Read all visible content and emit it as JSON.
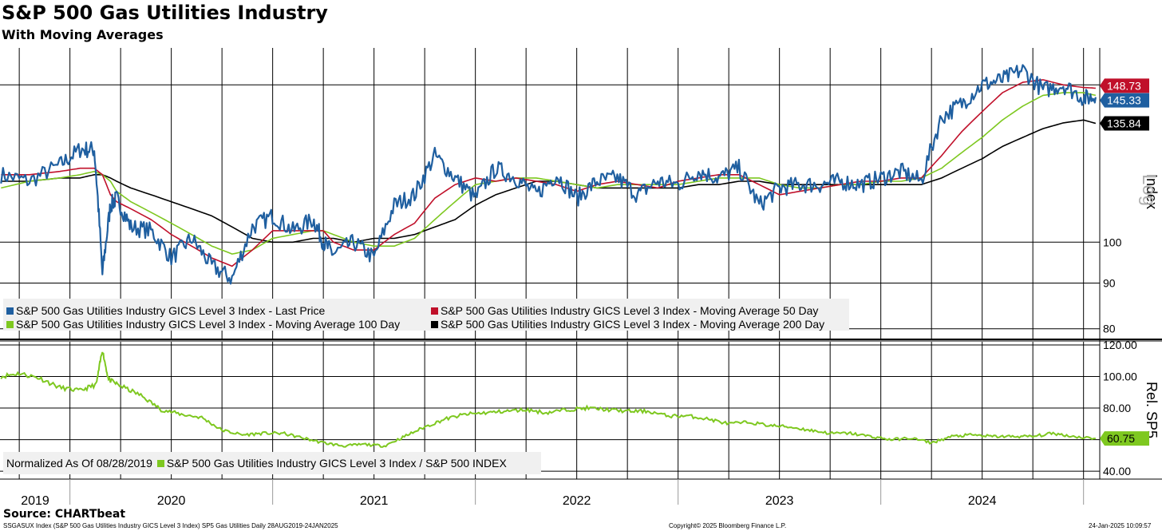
{
  "header": {
    "title": "S&P 500 Gas Utilities Industry",
    "subtitle": "With Moving Averages"
  },
  "footer": {
    "source": "Source: CHARTbeat",
    "ticker_info": "SSGASUX Index (S&P 500 Gas Utilities Industry GICS Level 3 Index) SP5 Gas Utilities  Daily 28AUG2019-24JAN2025",
    "copyright": "Copyright© 2025 Bloomberg Finance L.P.",
    "timestamp": "24-Jan-2025 10:09:57"
  },
  "colors": {
    "last_price": "#1f5fa0",
    "ma50": "#c0102a",
    "ma100": "#7ec820",
    "ma200": "#000000",
    "rel": "#7ec820"
  },
  "chart_data": [
    {
      "type": "line",
      "title": "S&P 500 Gas Utilities Industry",
      "ylabel": "Index",
      "scale_label": "Log",
      "yscale": "log",
      "ylim": [
        78,
        165
      ],
      "yticks": [
        80,
        90,
        100
      ],
      "x": [
        2019.66,
        2019.8,
        2019.95,
        2020.05,
        2020.12,
        2020.16,
        2020.2,
        2020.23,
        2020.3,
        2020.4,
        2020.5,
        2020.6,
        2020.7,
        2020.8,
        2020.9,
        2021.0,
        2021.1,
        2021.2,
        2021.25,
        2021.3,
        2021.4,
        2021.5,
        2021.6,
        2021.7,
        2021.8,
        2021.9,
        2022.0,
        2022.1,
        2022.2,
        2022.3,
        2022.4,
        2022.5,
        2022.6,
        2022.7,
        2022.8,
        2022.9,
        2023.0,
        2023.1,
        2023.2,
        2023.3,
        2023.4,
        2023.5,
        2023.6,
        2023.7,
        2023.8,
        2023.9,
        2024.0,
        2024.1,
        2024.2,
        2024.3,
        2024.4,
        2024.5,
        2024.6,
        2024.7,
        2024.8,
        2024.9,
        2025.0,
        2025.06
      ],
      "series": [
        {
          "name": "S&P 500 Gas Utilities Industry GICS Level 3 Index - Last Price",
          "color": "#1f5fa0",
          "values": [
            119,
            117,
            122,
            127,
            127,
            92,
            110,
            112,
            104,
            103,
            96,
            101,
            94,
            91,
            104,
            107,
            103,
            106,
            100,
            97,
            100,
            96,
            110,
            113,
            125,
            118,
            112,
            121,
            118,
            113,
            119,
            112,
            117,
            118,
            113,
            117,
            116,
            120,
            118,
            121,
            110,
            115,
            116,
            116,
            117,
            116,
            118,
            120,
            117,
            138,
            143,
            150,
            152,
            156,
            148,
            150,
            145,
            145.33
          ]
        },
        {
          "name": "S&P 500 Gas Utilities Industry GICS Level 3 Index - Moving Average 50 Day",
          "color": "#c0102a",
          "values": [
            119,
            119,
            120,
            121,
            121,
            119,
            113,
            111,
            109,
            106,
            102,
            99,
            96,
            94,
            98,
            103,
            103,
            103,
            103,
            100,
            98,
            98,
            102,
            105,
            112,
            116,
            118,
            117,
            118,
            117,
            116,
            114,
            116,
            117,
            116,
            115,
            117,
            118,
            119,
            119,
            116,
            113,
            114,
            115,
            116,
            117,
            117,
            118,
            118,
            125,
            133,
            140,
            147,
            151,
            152,
            150,
            149,
            148.73
          ]
        },
        {
          "name": "S&P 500 Gas Utilities Industry GICS Level 3 Index - Moving Average 100 Day",
          "color": "#7ec820",
          "values": [
            115,
            117,
            118,
            119,
            120,
            119,
            117,
            114,
            111,
            108,
            105,
            102,
            99,
            97,
            98,
            101,
            102,
            103,
            103,
            102,
            100,
            99,
            99,
            101,
            106,
            111,
            116,
            117,
            118,
            118,
            117,
            116,
            115,
            116,
            116,
            116,
            116,
            117,
            118,
            118,
            118,
            116,
            115,
            115,
            116,
            116,
            117,
            117,
            118,
            121,
            126,
            131,
            137,
            142,
            146,
            147,
            147,
            146
          ]
        },
        {
          "name": "S&P 500 Gas Utilities Industry GICS Level 3 Index - Moving Average 200 Day",
          "color": "#000000",
          "values": [
            117,
            117,
            118,
            118,
            119,
            119,
            118,
            117,
            115,
            113,
            111,
            109,
            107,
            104,
            101,
            100,
            100,
            101,
            101,
            101,
            100,
            101,
            101,
            102,
            104,
            106,
            110,
            113,
            115,
            117,
            117,
            116,
            115,
            115,
            115,
            115,
            115,
            116,
            116,
            117,
            117,
            116,
            116,
            116,
            116,
            116,
            116,
            116,
            116,
            118,
            121,
            124,
            128,
            131,
            134,
            136,
            137,
            135.84
          ]
        }
      ],
      "last_values": {
        "ma50_label": "148.73",
        "last_price_label": "145.33",
        "ma200_label": "135.84"
      },
      "legend": [
        "S&P 500 Gas Utilities Industry GICS Level 3 Index - Last Price",
        "S&P 500 Gas Utilities Industry GICS Level 3 Index - Moving Average 50 Day",
        "S&P 500 Gas Utilities Industry GICS Level 3 Index - Moving Average 100 Day",
        "S&P 500 Gas Utilities Industry GICS Level 3 Index - Moving Average 200 Day"
      ]
    },
    {
      "type": "line",
      "ylabel": "Rel. SP5",
      "ylim": [
        35,
        122
      ],
      "yticks": [
        "40.00",
        "60.00",
        "80.00",
        "100.00",
        "120.00"
      ],
      "xlabels": [
        "2019",
        "2020",
        "2021",
        "2022",
        "2023",
        "2024"
      ],
      "x": [
        2019.66,
        2019.75,
        2019.85,
        2019.95,
        2020.05,
        2020.13,
        2020.16,
        2020.19,
        2020.25,
        2020.35,
        2020.45,
        2020.55,
        2020.65,
        2020.75,
        2020.85,
        2020.95,
        2021.05,
        2021.15,
        2021.25,
        2021.35,
        2021.45,
        2021.55,
        2021.65,
        2021.75,
        2021.85,
        2021.95,
        2022.05,
        2022.15,
        2022.25,
        2022.35,
        2022.45,
        2022.55,
        2022.65,
        2022.75,
        2022.85,
        2022.95,
        2023.05,
        2023.15,
        2023.25,
        2023.35,
        2023.45,
        2023.55,
        2023.65,
        2023.75,
        2023.85,
        2023.95,
        2024.05,
        2024.15,
        2024.25,
        2024.35,
        2024.45,
        2024.55,
        2024.65,
        2024.75,
        2024.85,
        2024.95,
        2025.06
      ],
      "series": [
        {
          "name": "S&P 500 Gas Utilities Industry GICS Level 3 Index / S&P 500 INDEX",
          "color": "#7ec820",
          "values": [
            100,
            102,
            99,
            93,
            91,
            95,
            117,
            98,
            94,
            88,
            79,
            76,
            74,
            66,
            63,
            64,
            64,
            61,
            58,
            56,
            57,
            56,
            62,
            68,
            73,
            76,
            77,
            78,
            79,
            77,
            79,
            80,
            79,
            78,
            78,
            75,
            75,
            73,
            70,
            71,
            69,
            68,
            66,
            64,
            64,
            62,
            60,
            61,
            58,
            62,
            63,
            62,
            62,
            62,
            64,
            62,
            60.75
          ]
        }
      ],
      "last_value_label": "60.75",
      "legend_prefix": "Normalized As Of 08/28/2019",
      "legend": [
        "S&P 500 Gas Utilities Industry GICS Level 3 Index / S&P 500 INDEX"
      ]
    }
  ]
}
